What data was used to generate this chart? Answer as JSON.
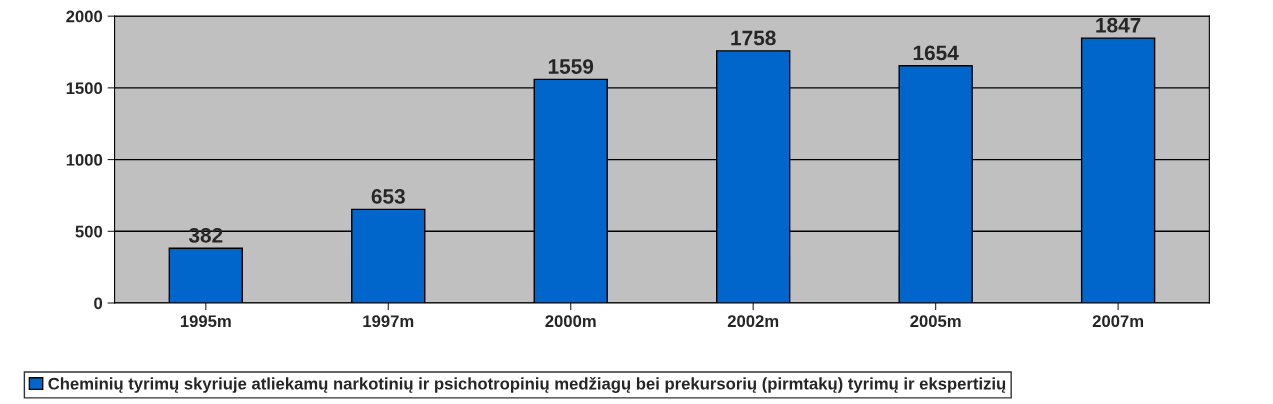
{
  "chart_data": {
    "type": "bar",
    "categories": [
      "1995m",
      "1997m",
      "2000m",
      "2002m",
      "2005m",
      "2007m"
    ],
    "series": [
      {
        "name": "Cheminių tyrimų skyriuje atliekamų narkotinių ir psichotropinių medžiagų bei prekursorių (pirmtakų) tyrimų ir ekspertizių",
        "color": "#0066cc",
        "values": [
          382,
          653,
          1559,
          1758,
          1654,
          1847
        ]
      }
    ],
    "ylim": [
      0,
      2000
    ],
    "yticks": [
      0,
      500,
      1000,
      1500,
      2000
    ],
    "grid": "y",
    "data_labels": true,
    "legend": "bottom"
  }
}
